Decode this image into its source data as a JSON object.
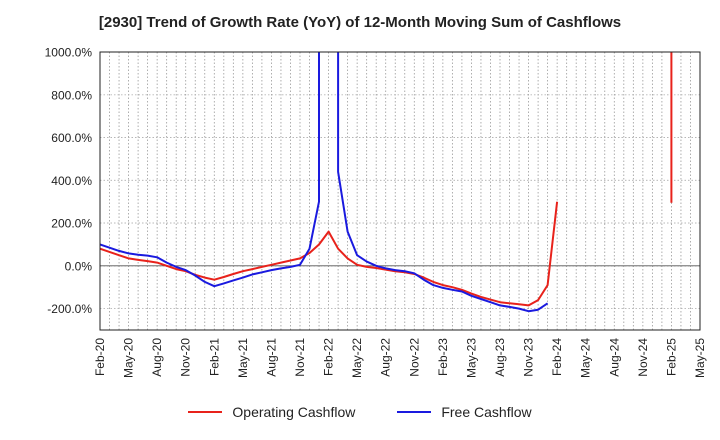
{
  "chart_data": {
    "type": "line",
    "title": "[2930]  Trend of Growth Rate (YoY) of 12-Month Moving Sum of Cashflows",
    "xlabel": "",
    "ylabel": "",
    "ylim": [
      -300,
      1000
    ],
    "y_ticks": [
      1000,
      800,
      600,
      400,
      200,
      0,
      -200
    ],
    "y_tick_labels": [
      "1000.0%",
      "800.0%",
      "600.0%",
      "400.0%",
      "200.0%",
      "0.0%",
      "-200.0%"
    ],
    "x_tick_labels": [
      "Feb-20",
      "May-20",
      "Aug-20",
      "Nov-20",
      "Feb-21",
      "May-21",
      "Aug-21",
      "Nov-21",
      "Feb-22",
      "May-22",
      "Aug-22",
      "Nov-22",
      "Feb-23",
      "May-23",
      "Aug-23",
      "Nov-23",
      "Feb-24",
      "May-24",
      "Aug-24",
      "Nov-24",
      "Feb-25",
      "May-25"
    ],
    "x_start": "2020-02",
    "x_end": "2025-05",
    "grid": true,
    "legend_position": "bottom",
    "series": [
      {
        "name": "Operating Cashflow",
        "color": "#e8221b",
        "points": [
          [
            "2020-02",
            80
          ],
          [
            "2020-03",
            65
          ],
          [
            "2020-04",
            50
          ],
          [
            "2020-05",
            35
          ],
          [
            "2020-06",
            28
          ],
          [
            "2020-07",
            22
          ],
          [
            "2020-08",
            15
          ],
          [
            "2020-09",
            0
          ],
          [
            "2020-10",
            -15
          ],
          [
            "2020-11",
            -25
          ],
          [
            "2020-12",
            -42
          ],
          [
            "2021-01",
            -55
          ],
          [
            "2021-02",
            -65
          ],
          [
            "2021-03",
            -52
          ],
          [
            "2021-04",
            -38
          ],
          [
            "2021-05",
            -25
          ],
          [
            "2021-06",
            -15
          ],
          [
            "2021-07",
            -5
          ],
          [
            "2021-08",
            5
          ],
          [
            "2021-09",
            15
          ],
          [
            "2021-10",
            25
          ],
          [
            "2021-11",
            35
          ],
          [
            "2021-12",
            60
          ],
          [
            "2022-01",
            100
          ],
          [
            "2022-02",
            160
          ],
          [
            "2022-03",
            80
          ],
          [
            "2022-04",
            35
          ],
          [
            "2022-05",
            5
          ],
          [
            "2022-06",
            -5
          ],
          [
            "2022-07",
            -10
          ],
          [
            "2022-08",
            -18
          ],
          [
            "2022-09",
            -25
          ],
          [
            "2022-10",
            -30
          ],
          [
            "2022-11",
            -38
          ],
          [
            "2022-12",
            -55
          ],
          [
            "2023-01",
            -75
          ],
          [
            "2023-02",
            -90
          ],
          [
            "2023-03",
            -100
          ],
          [
            "2023-04",
            -112
          ],
          [
            "2023-05",
            -130
          ],
          [
            "2023-06",
            -145
          ],
          [
            "2023-07",
            -158
          ],
          [
            "2023-08",
            -170
          ],
          [
            "2023-09",
            -175
          ],
          [
            "2023-10",
            -180
          ],
          [
            "2023-11",
            -185
          ],
          [
            "2023-12",
            -160
          ],
          [
            "2024-01",
            -90
          ],
          [
            "2024-02",
            300
          ],
          null,
          [
            "2025-02",
            1000
          ],
          [
            "2025-02",
            295
          ]
        ]
      },
      {
        "name": "Free Cashflow",
        "color": "#1a1adf",
        "points": [
          [
            "2020-02",
            100
          ],
          [
            "2020-03",
            85
          ],
          [
            "2020-04",
            70
          ],
          [
            "2020-05",
            58
          ],
          [
            "2020-06",
            52
          ],
          [
            "2020-07",
            48
          ],
          [
            "2020-08",
            40
          ],
          [
            "2020-09",
            15
          ],
          [
            "2020-10",
            -5
          ],
          [
            "2020-11",
            -20
          ],
          [
            "2020-12",
            -45
          ],
          [
            "2021-01",
            -75
          ],
          [
            "2021-02",
            -95
          ],
          [
            "2021-03",
            -82
          ],
          [
            "2021-04",
            -68
          ],
          [
            "2021-05",
            -55
          ],
          [
            "2021-06",
            -40
          ],
          [
            "2021-07",
            -30
          ],
          [
            "2021-08",
            -20
          ],
          [
            "2021-09",
            -12
          ],
          [
            "2021-10",
            -5
          ],
          [
            "2021-11",
            5
          ],
          [
            "2021-12",
            80
          ],
          [
            "2022-01",
            300
          ],
          [
            "2022-01",
            1000
          ],
          null,
          [
            "2022-03",
            1000
          ],
          [
            "2022-03",
            440
          ],
          [
            "2022-04",
            160
          ],
          [
            "2022-05",
            50
          ],
          [
            "2022-06",
            20
          ],
          [
            "2022-07",
            0
          ],
          [
            "2022-08",
            -12
          ],
          [
            "2022-09",
            -20
          ],
          [
            "2022-10",
            -25
          ],
          [
            "2022-11",
            -35
          ],
          [
            "2022-12",
            -65
          ],
          [
            "2023-01",
            -90
          ],
          [
            "2023-02",
            -103
          ],
          [
            "2023-03",
            -112
          ],
          [
            "2023-04",
            -120
          ],
          [
            "2023-05",
            -140
          ],
          [
            "2023-06",
            -155
          ],
          [
            "2023-07",
            -170
          ],
          [
            "2023-08",
            -185
          ],
          [
            "2023-09",
            -192
          ],
          [
            "2023-10",
            -200
          ],
          [
            "2023-11",
            -212
          ],
          [
            "2023-12",
            -205
          ],
          [
            "2024-01",
            -175
          ]
        ]
      }
    ]
  }
}
